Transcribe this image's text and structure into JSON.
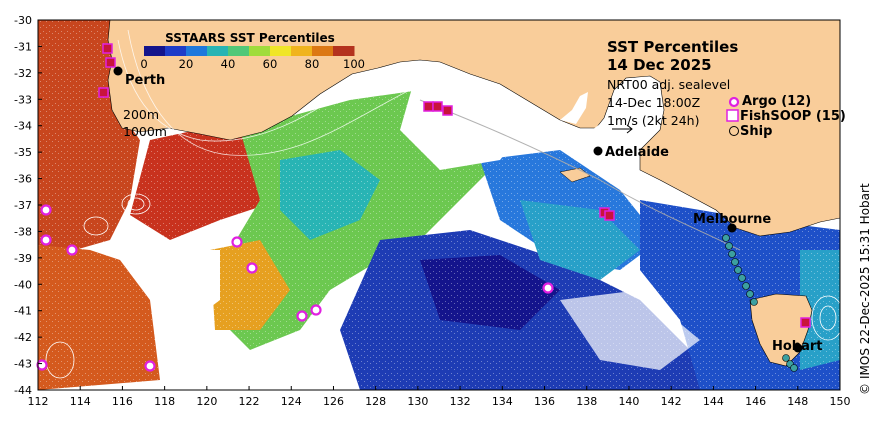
{
  "map": {
    "lon_ticks": [
      "112",
      "114",
      "116",
      "118",
      "120",
      "122",
      "124",
      "126",
      "128",
      "130",
      "132",
      "134",
      "136",
      "138",
      "140",
      "142",
      "144",
      "146",
      "148",
      "150"
    ],
    "lat_ticks": [
      "-30",
      "-31",
      "-32",
      "-33",
      "-34",
      "-35",
      "-36",
      "-37",
      "-38",
      "-39",
      "-40",
      "-41",
      "-42",
      "-43",
      "-44"
    ],
    "lon_range": [
      112,
      150
    ],
    "lat_range": [
      -44,
      -30
    ],
    "colors": {
      "land": "#f9cd9a",
      "no_data": "#ffffff",
      "frame": "#000000"
    }
  },
  "colorbar": {
    "title": "SSTAARS SST Percentiles",
    "ticks": [
      "0",
      "20",
      "40",
      "60",
      "80",
      "100"
    ],
    "colors": [
      "#14148c",
      "#1e3cc8",
      "#1e78dc",
      "#28b4b4",
      "#50c878",
      "#a0dc3c",
      "#f0e628",
      "#f0b41e",
      "#dc7814",
      "#b4321e"
    ]
  },
  "header": {
    "title": "SST Percentiles",
    "date": "14 Dec 2025",
    "product": "NRT00 adj. sealevel",
    "time": "14-Dec 18:00Z",
    "current_scale": "1m/s (2kt 24h)"
  },
  "legend": {
    "argo": "Argo (12)",
    "fishsoop": "FishSOOP (15)",
    "ship": "Ship"
  },
  "contours": {
    "depth_200": "200m",
    "depth_1000": "1000m"
  },
  "places": {
    "perth": "Perth",
    "adelaide": "Adelaide",
    "melbourne": "Melbourne",
    "hobart": "Hobart"
  },
  "credit": {
    "copyright": "©",
    "text": "IMOS 22-Dec-2025 15:31 Hobart"
  }
}
